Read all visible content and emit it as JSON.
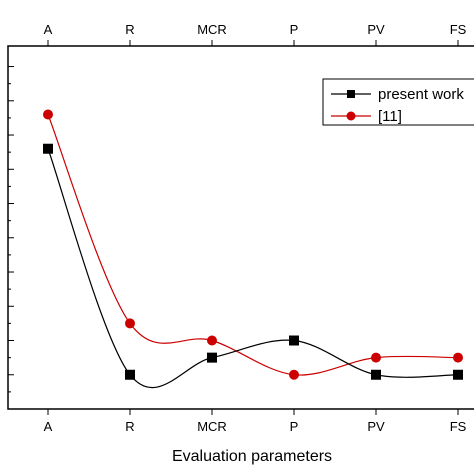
{
  "chart_data": {
    "type": "line",
    "categories": [
      "A",
      "R",
      "MCR",
      "P",
      "PV",
      "FS"
    ],
    "xlabel": "Evaluation parameters",
    "ylabel": "",
    "ylim": [
      0,
      10.6
    ],
    "series": [
      {
        "name": "present work",
        "values": [
          7.6,
          1.0,
          1.5,
          2.0,
          1.0,
          1.0
        ],
        "color": "#000000",
        "marker": "square"
      },
      {
        "name": "[11]",
        "values": [
          8.6,
          2.5,
          2.0,
          1.0,
          1.5,
          1.5
        ],
        "color": "#cc0000",
        "marker": "circle"
      }
    ],
    "grid": false,
    "legend_position": "top-right"
  }
}
